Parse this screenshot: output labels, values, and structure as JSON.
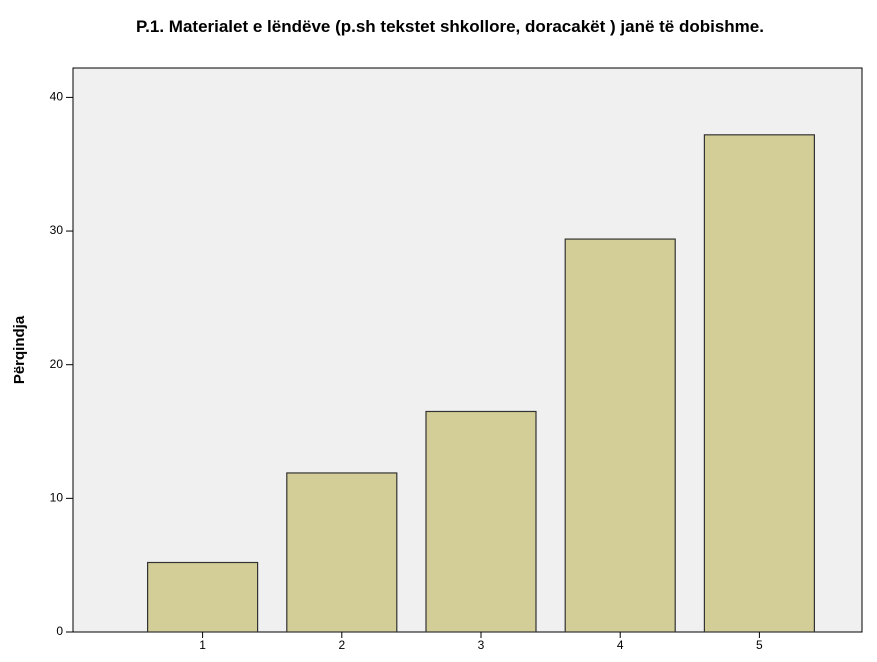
{
  "chart_data": {
    "type": "bar",
    "title": "P.1. Materialet e lëndëve (p.sh tekstet shkollore, doracakët ) janë të dobishme.",
    "ylabel": "Përqindja",
    "categories": [
      "1",
      "2",
      "3",
      "4",
      "5"
    ],
    "values": [
      5.2,
      11.9,
      16.5,
      29.4,
      37.2
    ],
    "color": "#d3ce97",
    "ylim": [
      0,
      42.2
    ],
    "yticks": [
      0,
      10,
      20,
      30,
      40
    ],
    "grid": false
  }
}
